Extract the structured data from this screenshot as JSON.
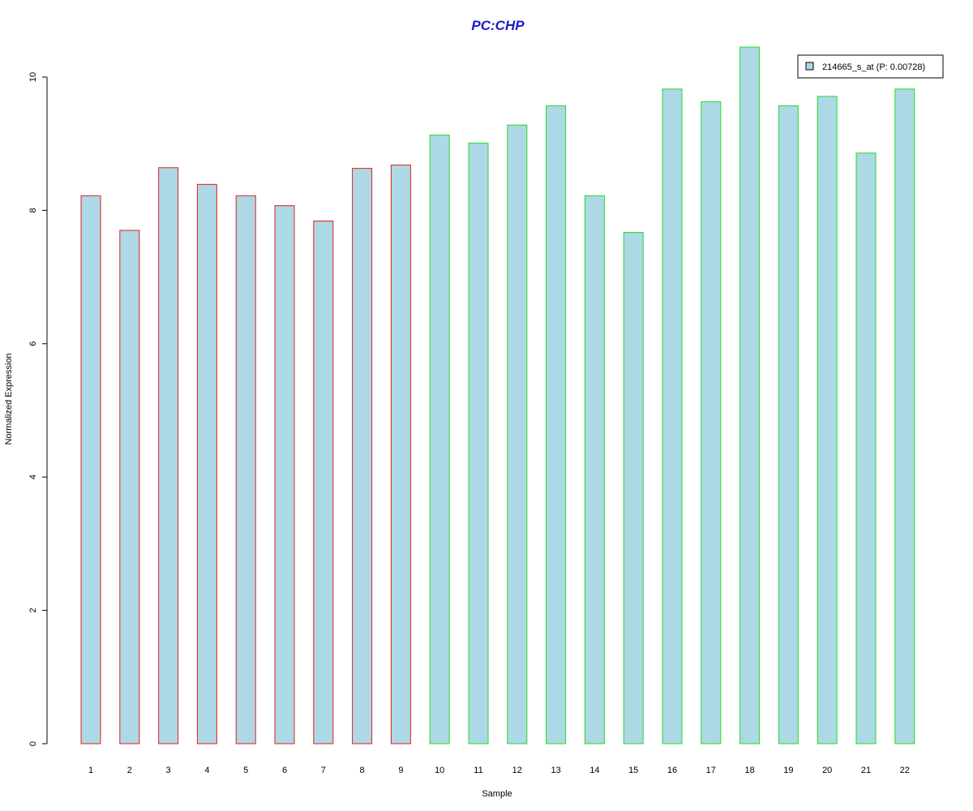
{
  "chart_data": {
    "type": "bar",
    "title": "PC:CHP",
    "xlabel": "Sample",
    "ylabel": "Normalized Expression",
    "categories": [
      "1",
      "2",
      "3",
      "4",
      "5",
      "6",
      "7",
      "8",
      "9",
      "10",
      "11",
      "12",
      "13",
      "14",
      "15",
      "16",
      "17",
      "18",
      "19",
      "20",
      "21",
      "22"
    ],
    "series": [
      {
        "name": "214665_s_at (P: 0.00728)",
        "values": [
          8.22,
          7.7,
          8.64,
          8.39,
          8.22,
          8.07,
          7.84,
          8.63,
          8.68,
          9.13,
          9.01,
          9.28,
          9.57,
          8.22,
          7.67,
          9.82,
          9.63,
          10.45,
          9.57,
          9.71,
          8.86,
          9.82
        ]
      }
    ],
    "group_border_colors": [
      "#e0201b",
      "#e0201b",
      "#e0201b",
      "#e0201b",
      "#e0201b",
      "#e0201b",
      "#e0201b",
      "#e0201b",
      "#e0201b",
      "#22dd22",
      "#22dd22",
      "#22dd22",
      "#22dd22",
      "#22dd22",
      "#22dd22",
      "#22dd22",
      "#22dd22",
      "#22dd22",
      "#22dd22",
      "#22dd22",
      "#22dd22",
      "#22dd22"
    ],
    "bar_fill": "#add8e6",
    "title_color": "#1a1acc",
    "yticks": [
      0,
      2,
      4,
      6,
      8,
      10
    ],
    "ylim": [
      0,
      10.45
    ],
    "grid": false,
    "legend_position": "top-right"
  }
}
